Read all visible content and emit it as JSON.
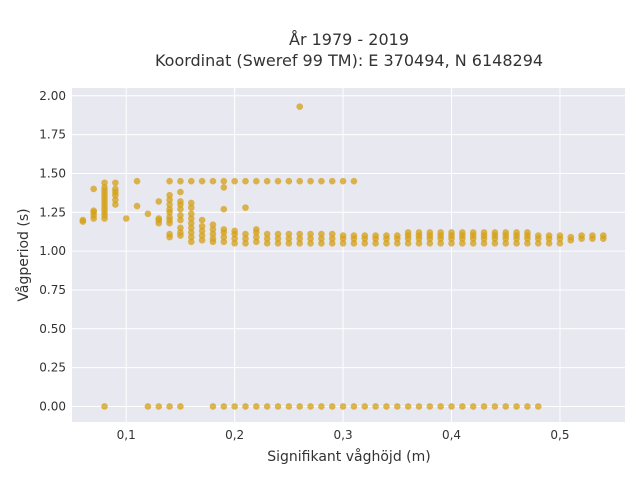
{
  "chart_data": {
    "type": "scatter",
    "title_lines": [
      "År 1979 - 2019",
      "Koordinat (Sweref 99 TM): E 370494, N 6148294"
    ],
    "xlabel": "Signifikant våghöjd (m)",
    "ylabel": "Vågperiod (s)",
    "xlim": [
      0.05,
      0.56
    ],
    "ylim": [
      -0.1,
      2.05
    ],
    "x_ticks": [
      {
        "value": 0.1,
        "label": "0,1"
      },
      {
        "value": 0.2,
        "label": "0,2"
      },
      {
        "value": 0.3,
        "label": "0,3"
      },
      {
        "value": 0.4,
        "label": "0,4"
      },
      {
        "value": 0.5,
        "label": "0,5"
      }
    ],
    "y_ticks": [
      {
        "value": 0.0,
        "label": "0.00"
      },
      {
        "value": 0.25,
        "label": "0.25"
      },
      {
        "value": 0.5,
        "label": "0.50"
      },
      {
        "value": 0.75,
        "label": "0.75"
      },
      {
        "value": 1.0,
        "label": "1.00"
      },
      {
        "value": 1.25,
        "label": "1.25"
      },
      {
        "value": 1.5,
        "label": "1.50"
      },
      {
        "value": 1.75,
        "label": "1.75"
      },
      {
        "value": 2.0,
        "label": "2.00"
      }
    ],
    "grid": true,
    "legend": "none",
    "marker_color": "#D4A017",
    "plot_background": "#E8E8F0",
    "grid_color": "#FFFFFF",
    "series": [
      {
        "points": [
          [
            0.06,
            1.19
          ],
          [
            0.06,
            1.2
          ],
          [
            0.07,
            1.21
          ],
          [
            0.07,
            1.23
          ],
          [
            0.07,
            1.25
          ],
          [
            0.07,
            1.26
          ],
          [
            0.07,
            1.4
          ],
          [
            0.08,
            1.21
          ],
          [
            0.08,
            1.23
          ],
          [
            0.08,
            1.25
          ],
          [
            0.08,
            1.27
          ],
          [
            0.08,
            1.29
          ],
          [
            0.08,
            1.31
          ],
          [
            0.08,
            1.33
          ],
          [
            0.08,
            1.35
          ],
          [
            0.08,
            1.37
          ],
          [
            0.08,
            1.39
          ],
          [
            0.08,
            1.41
          ],
          [
            0.08,
            1.44
          ],
          [
            0.09,
            1.3
          ],
          [
            0.09,
            1.33
          ],
          [
            0.09,
            1.36
          ],
          [
            0.09,
            1.38
          ],
          [
            0.09,
            1.4
          ],
          [
            0.09,
            1.44
          ],
          [
            0.1,
            1.21
          ],
          [
            0.11,
            1.29
          ],
          [
            0.11,
            1.45
          ],
          [
            0.12,
            1.24
          ],
          [
            0.13,
            1.18
          ],
          [
            0.13,
            1.2
          ],
          [
            0.13,
            1.21
          ],
          [
            0.13,
            1.32
          ],
          [
            0.14,
            1.09
          ],
          [
            0.14,
            1.11
          ],
          [
            0.14,
            1.18
          ],
          [
            0.14,
            1.2
          ],
          [
            0.14,
            1.22
          ],
          [
            0.14,
            1.25
          ],
          [
            0.14,
            1.27
          ],
          [
            0.14,
            1.3
          ],
          [
            0.14,
            1.33
          ],
          [
            0.14,
            1.36
          ],
          [
            0.14,
            1.45
          ],
          [
            0.15,
            1.1
          ],
          [
            0.15,
            1.12
          ],
          [
            0.15,
            1.15
          ],
          [
            0.15,
            1.2
          ],
          [
            0.15,
            1.23
          ],
          [
            0.15,
            1.27
          ],
          [
            0.15,
            1.3
          ],
          [
            0.15,
            1.32
          ],
          [
            0.15,
            1.38
          ],
          [
            0.15,
            1.45
          ],
          [
            0.16,
            1.06
          ],
          [
            0.16,
            1.09
          ],
          [
            0.16,
            1.12
          ],
          [
            0.16,
            1.15
          ],
          [
            0.16,
            1.18
          ],
          [
            0.16,
            1.21
          ],
          [
            0.16,
            1.24
          ],
          [
            0.16,
            1.28
          ],
          [
            0.16,
            1.31
          ],
          [
            0.16,
            1.45
          ],
          [
            0.17,
            1.07
          ],
          [
            0.17,
            1.1
          ],
          [
            0.17,
            1.13
          ],
          [
            0.17,
            1.16
          ],
          [
            0.17,
            1.2
          ],
          [
            0.17,
            1.45
          ],
          [
            0.18,
            1.06
          ],
          [
            0.18,
            1.08
          ],
          [
            0.18,
            1.11
          ],
          [
            0.18,
            1.14
          ],
          [
            0.18,
            1.17
          ],
          [
            0.18,
            1.45
          ],
          [
            0.19,
            1.06
          ],
          [
            0.19,
            1.09
          ],
          [
            0.19,
            1.12
          ],
          [
            0.19,
            1.14
          ],
          [
            0.19,
            1.27
          ],
          [
            0.19,
            1.41
          ],
          [
            0.19,
            1.45
          ],
          [
            0.2,
            1.05
          ],
          [
            0.2,
            1.08
          ],
          [
            0.2,
            1.11
          ],
          [
            0.2,
            1.13
          ],
          [
            0.2,
            1.45
          ],
          [
            0.21,
            1.05
          ],
          [
            0.21,
            1.08
          ],
          [
            0.21,
            1.11
          ],
          [
            0.21,
            1.28
          ],
          [
            0.21,
            1.45
          ],
          [
            0.22,
            1.06
          ],
          [
            0.22,
            1.09
          ],
          [
            0.22,
            1.12
          ],
          [
            0.22,
            1.14
          ],
          [
            0.22,
            1.45
          ],
          [
            0.23,
            1.05
          ],
          [
            0.23,
            1.08
          ],
          [
            0.23,
            1.11
          ],
          [
            0.23,
            1.45
          ],
          [
            0.24,
            1.05
          ],
          [
            0.24,
            1.08
          ],
          [
            0.24,
            1.11
          ],
          [
            0.24,
            1.45
          ],
          [
            0.25,
            1.05
          ],
          [
            0.25,
            1.08
          ],
          [
            0.25,
            1.11
          ],
          [
            0.25,
            1.45
          ],
          [
            0.26,
            1.05
          ],
          [
            0.26,
            1.08
          ],
          [
            0.26,
            1.11
          ],
          [
            0.26,
            1.45
          ],
          [
            0.26,
            1.93
          ],
          [
            0.27,
            1.05
          ],
          [
            0.27,
            1.08
          ],
          [
            0.27,
            1.11
          ],
          [
            0.27,
            1.45
          ],
          [
            0.28,
            1.05
          ],
          [
            0.28,
            1.08
          ],
          [
            0.28,
            1.11
          ],
          [
            0.28,
            1.45
          ],
          [
            0.29,
            1.05
          ],
          [
            0.29,
            1.08
          ],
          [
            0.29,
            1.11
          ],
          [
            0.29,
            1.45
          ],
          [
            0.3,
            1.05
          ],
          [
            0.3,
            1.08
          ],
          [
            0.3,
            1.1
          ],
          [
            0.3,
            1.45
          ],
          [
            0.31,
            1.05
          ],
          [
            0.31,
            1.08
          ],
          [
            0.31,
            1.1
          ],
          [
            0.31,
            1.45
          ],
          [
            0.32,
            1.05
          ],
          [
            0.32,
            1.08
          ],
          [
            0.32,
            1.1
          ],
          [
            0.33,
            1.05
          ],
          [
            0.33,
            1.08
          ],
          [
            0.33,
            1.1
          ],
          [
            0.34,
            1.05
          ],
          [
            0.34,
            1.08
          ],
          [
            0.34,
            1.1
          ],
          [
            0.35,
            1.05
          ],
          [
            0.35,
            1.08
          ],
          [
            0.35,
            1.1
          ],
          [
            0.36,
            1.05
          ],
          [
            0.36,
            1.08
          ],
          [
            0.36,
            1.1
          ],
          [
            0.36,
            1.12
          ],
          [
            0.37,
            1.05
          ],
          [
            0.37,
            1.08
          ],
          [
            0.37,
            1.1
          ],
          [
            0.37,
            1.12
          ],
          [
            0.38,
            1.05
          ],
          [
            0.38,
            1.08
          ],
          [
            0.38,
            1.1
          ],
          [
            0.38,
            1.12
          ],
          [
            0.39,
            1.05
          ],
          [
            0.39,
            1.08
          ],
          [
            0.39,
            1.1
          ],
          [
            0.39,
            1.12
          ],
          [
            0.4,
            1.05
          ],
          [
            0.4,
            1.08
          ],
          [
            0.4,
            1.1
          ],
          [
            0.4,
            1.12
          ],
          [
            0.41,
            1.05
          ],
          [
            0.41,
            1.08
          ],
          [
            0.41,
            1.1
          ],
          [
            0.41,
            1.12
          ],
          [
            0.42,
            1.05
          ],
          [
            0.42,
            1.08
          ],
          [
            0.42,
            1.1
          ],
          [
            0.42,
            1.12
          ],
          [
            0.43,
            1.05
          ],
          [
            0.43,
            1.08
          ],
          [
            0.43,
            1.1
          ],
          [
            0.43,
            1.12
          ],
          [
            0.44,
            1.05
          ],
          [
            0.44,
            1.08
          ],
          [
            0.44,
            1.1
          ],
          [
            0.44,
            1.12
          ],
          [
            0.45,
            1.05
          ],
          [
            0.45,
            1.08
          ],
          [
            0.45,
            1.1
          ],
          [
            0.45,
            1.12
          ],
          [
            0.46,
            1.05
          ],
          [
            0.46,
            1.08
          ],
          [
            0.46,
            1.1
          ],
          [
            0.46,
            1.12
          ],
          [
            0.47,
            1.05
          ],
          [
            0.47,
            1.08
          ],
          [
            0.47,
            1.1
          ],
          [
            0.47,
            1.12
          ],
          [
            0.48,
            1.05
          ],
          [
            0.48,
            1.08
          ],
          [
            0.48,
            1.1
          ],
          [
            0.49,
            1.05
          ],
          [
            0.49,
            1.08
          ],
          [
            0.49,
            1.1
          ],
          [
            0.5,
            1.05
          ],
          [
            0.5,
            1.08
          ],
          [
            0.5,
            1.1
          ],
          [
            0.51,
            1.07
          ],
          [
            0.51,
            1.09
          ],
          [
            0.52,
            1.08
          ],
          [
            0.52,
            1.1
          ],
          [
            0.53,
            1.08
          ],
          [
            0.53,
            1.1
          ],
          [
            0.54,
            1.08
          ],
          [
            0.54,
            1.1
          ],
          [
            0.08,
            0.0
          ],
          [
            0.12,
            0.0
          ],
          [
            0.13,
            0.0
          ],
          [
            0.14,
            0.0
          ],
          [
            0.15,
            0.0
          ],
          [
            0.18,
            0.0
          ],
          [
            0.19,
            0.0
          ],
          [
            0.2,
            0.0
          ],
          [
            0.21,
            0.0
          ],
          [
            0.22,
            0.0
          ],
          [
            0.23,
            0.0
          ],
          [
            0.24,
            0.0
          ],
          [
            0.25,
            0.0
          ],
          [
            0.26,
            0.0
          ],
          [
            0.27,
            0.0
          ],
          [
            0.28,
            0.0
          ],
          [
            0.29,
            0.0
          ],
          [
            0.3,
            0.0
          ],
          [
            0.31,
            0.0
          ],
          [
            0.32,
            0.0
          ],
          [
            0.33,
            0.0
          ],
          [
            0.34,
            0.0
          ],
          [
            0.35,
            0.0
          ],
          [
            0.36,
            0.0
          ],
          [
            0.37,
            0.0
          ],
          [
            0.38,
            0.0
          ],
          [
            0.39,
            0.0
          ],
          [
            0.4,
            0.0
          ],
          [
            0.41,
            0.0
          ],
          [
            0.42,
            0.0
          ],
          [
            0.43,
            0.0
          ],
          [
            0.44,
            0.0
          ],
          [
            0.45,
            0.0
          ],
          [
            0.46,
            0.0
          ],
          [
            0.47,
            0.0
          ],
          [
            0.48,
            0.0
          ]
        ]
      }
    ]
  }
}
